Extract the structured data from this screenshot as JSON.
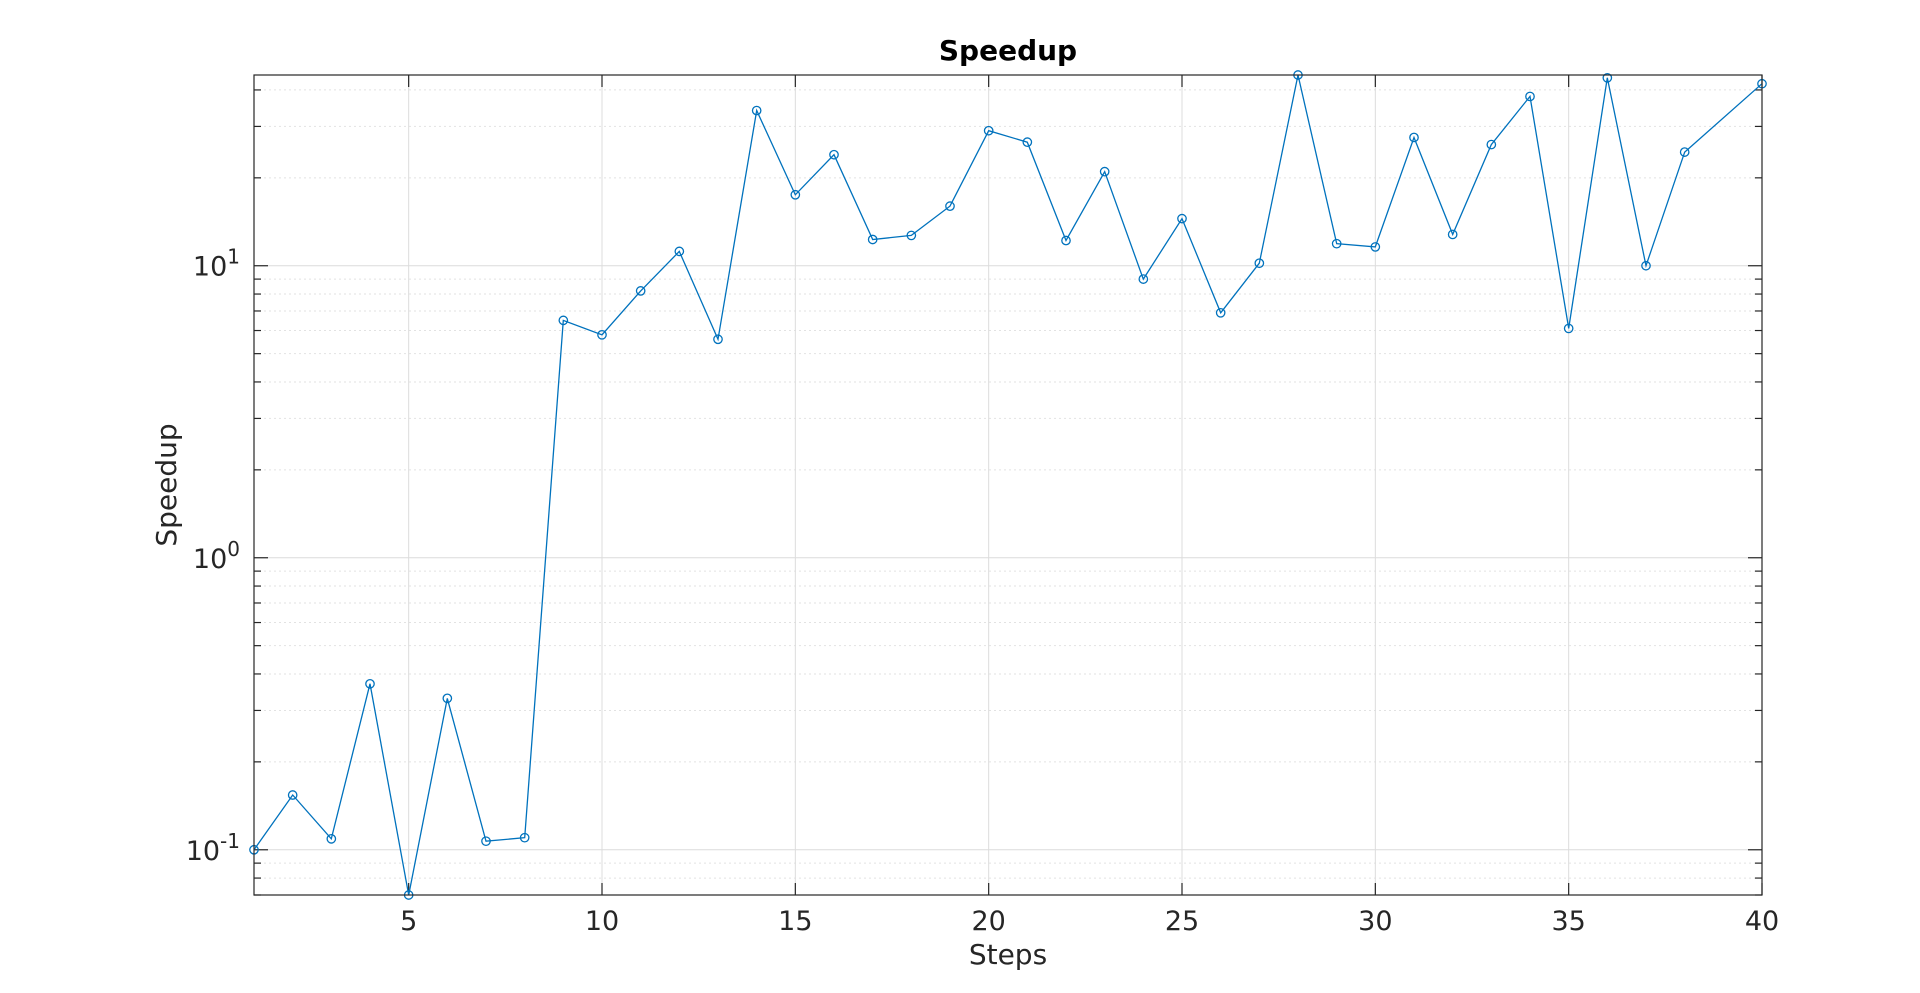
{
  "chart_data": {
    "type": "line",
    "title": "Speedup",
    "xlabel": "Steps",
    "ylabel": "Speedup",
    "xlim": [
      1,
      40
    ],
    "ylim": [
      0.07,
      45
    ],
    "yscale": "log",
    "grid": true,
    "marker": "circle",
    "color": "#0072BD",
    "x_ticks": [
      5,
      10,
      15,
      20,
      25,
      30,
      35,
      40
    ],
    "x_tick_labels": [
      "5",
      "10",
      "15",
      "20",
      "25",
      "30",
      "35",
      "40"
    ],
    "y_ticks": [
      0.1,
      1,
      10
    ],
    "y_tick_labels": [
      {
        "base": "10",
        "exp": "-1"
      },
      {
        "base": "10",
        "exp": "0"
      },
      {
        "base": "10",
        "exp": "1"
      }
    ],
    "x": [
      1,
      2,
      3,
      4,
      5,
      6,
      7,
      8,
      9,
      10,
      11,
      12,
      13,
      14,
      15,
      16,
      17,
      18,
      19,
      20,
      21,
      22,
      23,
      24,
      25,
      26,
      27,
      28,
      29,
      30,
      31,
      32,
      33,
      34,
      35,
      36,
      37,
      38,
      40
    ],
    "y": [
      0.1,
      0.154,
      0.109,
      0.37,
      0.07,
      0.33,
      0.107,
      0.11,
      6.5,
      5.8,
      8.2,
      11.2,
      5.6,
      34,
      17.5,
      24,
      12.3,
      12.7,
      16,
      29,
      26.5,
      12.2,
      21,
      9,
      14.5,
      6.9,
      10.2,
      45,
      11.9,
      11.6,
      27.5,
      12.8,
      26,
      38,
      6.1,
      44,
      10,
      24.5,
      42
    ]
  }
}
